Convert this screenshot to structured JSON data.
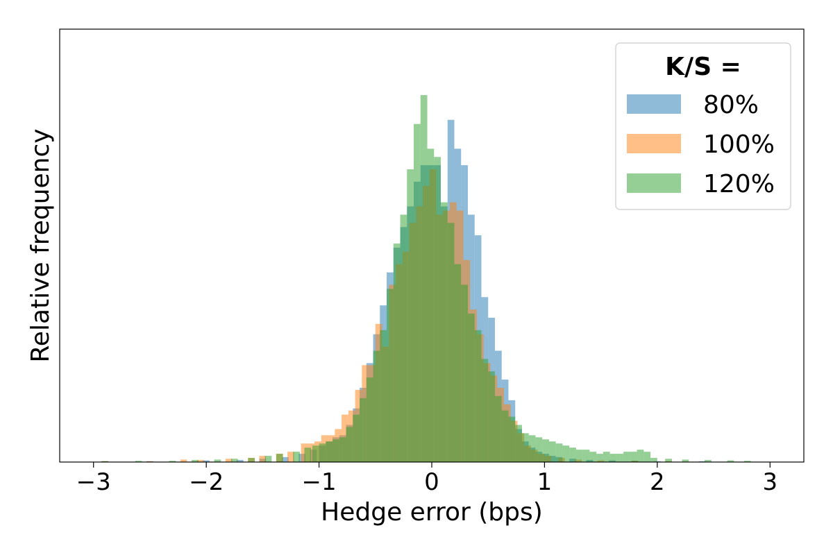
{
  "chart_data": {
    "type": "histogram",
    "xlabel": "Hedge error (bps)",
    "ylabel": "Relative frequency",
    "xlim": [
      -3.3,
      3.3
    ],
    "ylim": [
      0,
      1.05
    ],
    "x_ticks": [
      -3,
      -2,
      -1,
      0,
      1,
      2,
      3
    ],
    "x_tick_labels": [
      "−3",
      "−2",
      "−1",
      "0",
      "1",
      "2",
      "3"
    ],
    "y_ticks_shown": false,
    "grid": false,
    "bin_width": 0.06,
    "legend": {
      "title": "K/S =",
      "placement": "top-right",
      "entries": [
        "80%",
        "100%",
        "120%"
      ]
    },
    "series": [
      {
        "name": "80%",
        "color": "#1f77b4",
        "alpha": 0.5,
        "points": [
          [
            -2.9,
            0.002
          ],
          [
            -2.5,
            0.002
          ],
          [
            -2.0,
            0.004
          ],
          [
            -1.7,
            0.005
          ],
          [
            -1.5,
            0.008
          ],
          [
            -1.3,
            0.012
          ],
          [
            -1.15,
            0.02
          ],
          [
            -1.05,
            0.03
          ],
          [
            -0.97,
            0.04
          ],
          [
            -0.91,
            0.05
          ],
          [
            -0.85,
            0.06
          ],
          [
            -0.79,
            0.065
          ],
          [
            -0.73,
            0.09
          ],
          [
            -0.67,
            0.13
          ],
          [
            -0.61,
            0.18
          ],
          [
            -0.55,
            0.24
          ],
          [
            -0.49,
            0.31
          ],
          [
            -0.43,
            0.38
          ],
          [
            -0.37,
            0.46
          ],
          [
            -0.31,
            0.52
          ],
          [
            -0.25,
            0.57
          ],
          [
            -0.19,
            0.62
          ],
          [
            -0.13,
            0.68
          ],
          [
            -0.07,
            0.72
          ],
          [
            -0.01,
            0.72
          ],
          [
            0.05,
            0.72
          ],
          [
            0.11,
            0.62
          ],
          [
            0.17,
            0.83
          ],
          [
            0.23,
            0.76
          ],
          [
            0.29,
            0.72
          ],
          [
            0.35,
            0.6
          ],
          [
            0.41,
            0.55
          ],
          [
            0.47,
            0.4
          ],
          [
            0.53,
            0.35
          ],
          [
            0.59,
            0.27
          ],
          [
            0.65,
            0.2
          ],
          [
            0.71,
            0.15
          ],
          [
            0.77,
            0.08
          ],
          [
            0.83,
            0.05
          ],
          [
            0.89,
            0.035
          ],
          [
            0.95,
            0.025
          ],
          [
            1.01,
            0.02
          ],
          [
            1.07,
            0.015
          ],
          [
            1.13,
            0.012
          ],
          [
            1.25,
            0.008
          ],
          [
            1.4,
            0.005
          ],
          [
            1.6,
            0.004
          ],
          [
            1.8,
            0.003
          ],
          [
            2.0,
            0.002
          ],
          [
            2.4,
            0.002
          ]
        ]
      },
      {
        "name": "100%",
        "color": "#ff7f0e",
        "alpha": 0.5,
        "points": [
          [
            -2.9,
            0.002
          ],
          [
            -2.5,
            0.002
          ],
          [
            -2.2,
            0.006
          ],
          [
            -2.05,
            0.005
          ],
          [
            -1.8,
            0.008
          ],
          [
            -1.6,
            0.01
          ],
          [
            -1.5,
            0.015
          ],
          [
            -1.35,
            0.02
          ],
          [
            -1.25,
            0.025
          ],
          [
            -1.13,
            0.045
          ],
          [
            -1.07,
            0.045
          ],
          [
            -1.01,
            0.05
          ],
          [
            -0.95,
            0.065
          ],
          [
            -0.89,
            0.065
          ],
          [
            -0.83,
            0.08
          ],
          [
            -0.77,
            0.115
          ],
          [
            -0.71,
            0.125
          ],
          [
            -0.65,
            0.175
          ],
          [
            -0.59,
            0.235
          ],
          [
            -0.53,
            0.235
          ],
          [
            -0.47,
            0.335
          ],
          [
            -0.41,
            0.28
          ],
          [
            -0.35,
            0.43
          ],
          [
            -0.29,
            0.48
          ],
          [
            -0.23,
            0.51
          ],
          [
            -0.17,
            0.58
          ],
          [
            -0.11,
            0.62
          ],
          [
            -0.05,
            0.67
          ],
          [
            0.01,
            0.71
          ],
          [
            0.07,
            0.6
          ],
          [
            0.13,
            0.61
          ],
          [
            0.19,
            0.63
          ],
          [
            0.25,
            0.61
          ],
          [
            0.31,
            0.49
          ],
          [
            0.37,
            0.37
          ],
          [
            0.43,
            0.31
          ],
          [
            0.49,
            0.24
          ],
          [
            0.55,
            0.21
          ],
          [
            0.61,
            0.18
          ],
          [
            0.67,
            0.14
          ],
          [
            0.73,
            0.1
          ],
          [
            0.79,
            0.07
          ],
          [
            0.85,
            0.04
          ],
          [
            0.91,
            0.03
          ],
          [
            0.97,
            0.02
          ],
          [
            1.03,
            0.015
          ],
          [
            1.15,
            0.01
          ],
          [
            1.3,
            0.006
          ],
          [
            1.5,
            0.004
          ],
          [
            1.8,
            0.003
          ],
          [
            2.1,
            0.002
          ]
        ]
      },
      {
        "name": "120%",
        "color": "#2ca02c",
        "alpha": 0.5,
        "points": [
          [
            -2.9,
            0.002
          ],
          [
            -2.6,
            0.003
          ],
          [
            -2.3,
            0.003
          ],
          [
            -2.1,
            0.005
          ],
          [
            -1.9,
            0.006
          ],
          [
            -1.75,
            0.008
          ],
          [
            -1.6,
            0.01
          ],
          [
            -1.45,
            0.015
          ],
          [
            -1.35,
            0.02
          ],
          [
            -1.2,
            0.025
          ],
          [
            -1.1,
            0.035
          ],
          [
            -1.03,
            0.04
          ],
          [
            -0.97,
            0.045
          ],
          [
            -0.91,
            0.05
          ],
          [
            -0.85,
            0.055
          ],
          [
            -0.79,
            0.06
          ],
          [
            -0.73,
            0.085
          ],
          [
            -0.67,
            0.115
          ],
          [
            -0.61,
            0.155
          ],
          [
            -0.55,
            0.205
          ],
          [
            -0.49,
            0.27
          ],
          [
            -0.43,
            0.32
          ],
          [
            -0.37,
            0.42
          ],
          [
            -0.31,
            0.53
          ],
          [
            -0.25,
            0.6
          ],
          [
            -0.19,
            0.71
          ],
          [
            -0.13,
            0.82
          ],
          [
            -0.07,
            0.89
          ],
          [
            -0.01,
            0.76
          ],
          [
            0.05,
            0.74
          ],
          [
            0.11,
            0.63
          ],
          [
            0.17,
            0.58
          ],
          [
            0.23,
            0.48
          ],
          [
            0.29,
            0.43
          ],
          [
            0.35,
            0.36
          ],
          [
            0.41,
            0.32
          ],
          [
            0.47,
            0.25
          ],
          [
            0.53,
            0.22
          ],
          [
            0.59,
            0.16
          ],
          [
            0.65,
            0.125
          ],
          [
            0.71,
            0.11
          ],
          [
            0.77,
            0.09
          ],
          [
            0.83,
            0.07
          ],
          [
            0.89,
            0.065
          ],
          [
            0.95,
            0.06
          ],
          [
            1.01,
            0.055
          ],
          [
            1.07,
            0.05
          ],
          [
            1.13,
            0.045
          ],
          [
            1.19,
            0.04
          ],
          [
            1.25,
            0.035
          ],
          [
            1.31,
            0.03
          ],
          [
            1.37,
            0.03
          ],
          [
            1.43,
            0.025
          ],
          [
            1.49,
            0.02
          ],
          [
            1.55,
            0.025
          ],
          [
            1.61,
            0.02
          ],
          [
            1.67,
            0.02
          ],
          [
            1.73,
            0.025
          ],
          [
            1.79,
            0.025
          ],
          [
            1.85,
            0.03
          ],
          [
            1.91,
            0.025
          ],
          [
            1.97,
            0.01
          ],
          [
            2.1,
            0.008
          ],
          [
            2.25,
            0.006
          ],
          [
            2.45,
            0.005
          ],
          [
            2.65,
            0.004
          ],
          [
            2.8,
            0.003
          ]
        ]
      }
    ]
  }
}
